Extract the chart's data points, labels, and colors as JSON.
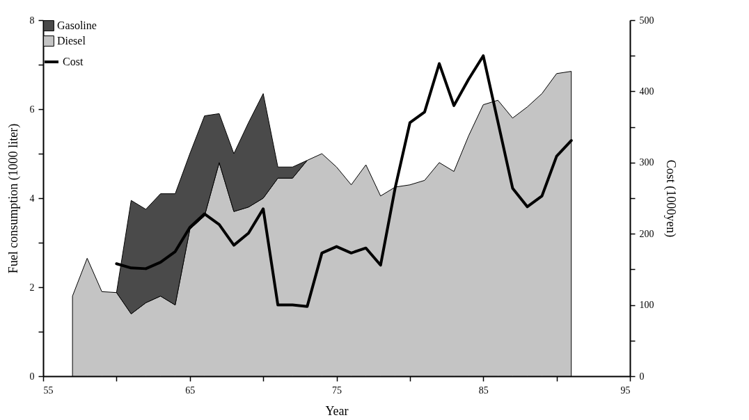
{
  "chart_data": {
    "type": "area",
    "xlabel": "Year",
    "ylabel": "Fuel consumption (1000 liter)",
    "y2label": "Cost (1000yen)",
    "stacked": true,
    "x": [
      57,
      58,
      59,
      60,
      61,
      62,
      63,
      64,
      65,
      66,
      67,
      68,
      69,
      70,
      71,
      72,
      73,
      74,
      75,
      76,
      77,
      78,
      79,
      80,
      81,
      82,
      83,
      84,
      85,
      86,
      87,
      88,
      89,
      90,
      91
    ],
    "legend": "top left",
    "grid": false,
    "xlim": [
      55,
      95
    ],
    "xticks": [
      55,
      {
        "value": 60,
        "label": null
      },
      65,
      {
        "value": 70,
        "label": null
      },
      75,
      {
        "value": 80,
        "label": null
      },
      85,
      {
        "value": 90,
        "label": null
      },
      95
    ],
    "ylim": [
      0,
      8
    ],
    "yticks": [
      0,
      {
        "value": 1,
        "label": null
      },
      2,
      {
        "value": 3,
        "label": null
      },
      4,
      {
        "value": 5,
        "label": null
      },
      6,
      {
        "value": 7,
        "label": null
      },
      8
    ],
    "y2lim": [
      0,
      500
    ],
    "y2ticks": [
      0,
      {
        "value": 50,
        "label": null
      },
      100,
      {
        "value": 150,
        "label": null
      },
      200,
      {
        "value": 250,
        "label": null
      },
      300,
      {
        "value": 350,
        "label": null
      },
      400,
      {
        "value": 450,
        "label": null
      },
      500
    ],
    "series": [
      {
        "name": "Diesel",
        "color": "#c4c4c4",
        "values": [
          1.8,
          2.65,
          1.9,
          1.88,
          1.4,
          1.65,
          1.8,
          1.6,
          3.3,
          3.6,
          4.8,
          3.7,
          3.8,
          4.0,
          4.45,
          4.45,
          4.85,
          5.0,
          4.7,
          4.3,
          4.75,
          4.05,
          4.25,
          4.3,
          4.4,
          4.8,
          4.6,
          5.4,
          6.1,
          6.2,
          5.8,
          6.05,
          6.35,
          6.8,
          6.85
        ]
      },
      {
        "name": "Gasoline",
        "color": "#4a4a4a",
        "values": [
          null,
          null,
          null,
          0,
          2.55,
          2.1,
          2.3,
          2.5,
          1.7,
          2.25,
          1.1,
          1.3,
          1.9,
          2.35,
          0.25,
          0.25,
          0,
          null,
          null,
          null,
          null,
          null,
          null,
          null,
          null,
          null,
          null,
          null,
          null,
          null,
          null,
          null,
          null,
          null,
          null
        ]
      },
      {
        "name": "Cost",
        "type": "line",
        "axis": "y2",
        "color": "#000000",
        "x": [
          60,
          61,
          62,
          63,
          64,
          65,
          66,
          67,
          68,
          69,
          70,
          71,
          72,
          73,
          74,
          75,
          76,
          77,
          78,
          79,
          80,
          81,
          82,
          83,
          84,
          85,
          86,
          87,
          88,
          89,
          90,
          91
        ],
        "values": [
          158,
          152,
          151,
          160,
          175,
          209,
          228,
          213,
          184,
          201,
          235,
          100,
          100,
          98,
          173,
          182,
          173,
          180,
          156,
          265,
          356,
          371,
          439,
          380,
          417,
          450,
          357,
          264,
          238,
          253,
          309,
          331
        ]
      }
    ]
  }
}
